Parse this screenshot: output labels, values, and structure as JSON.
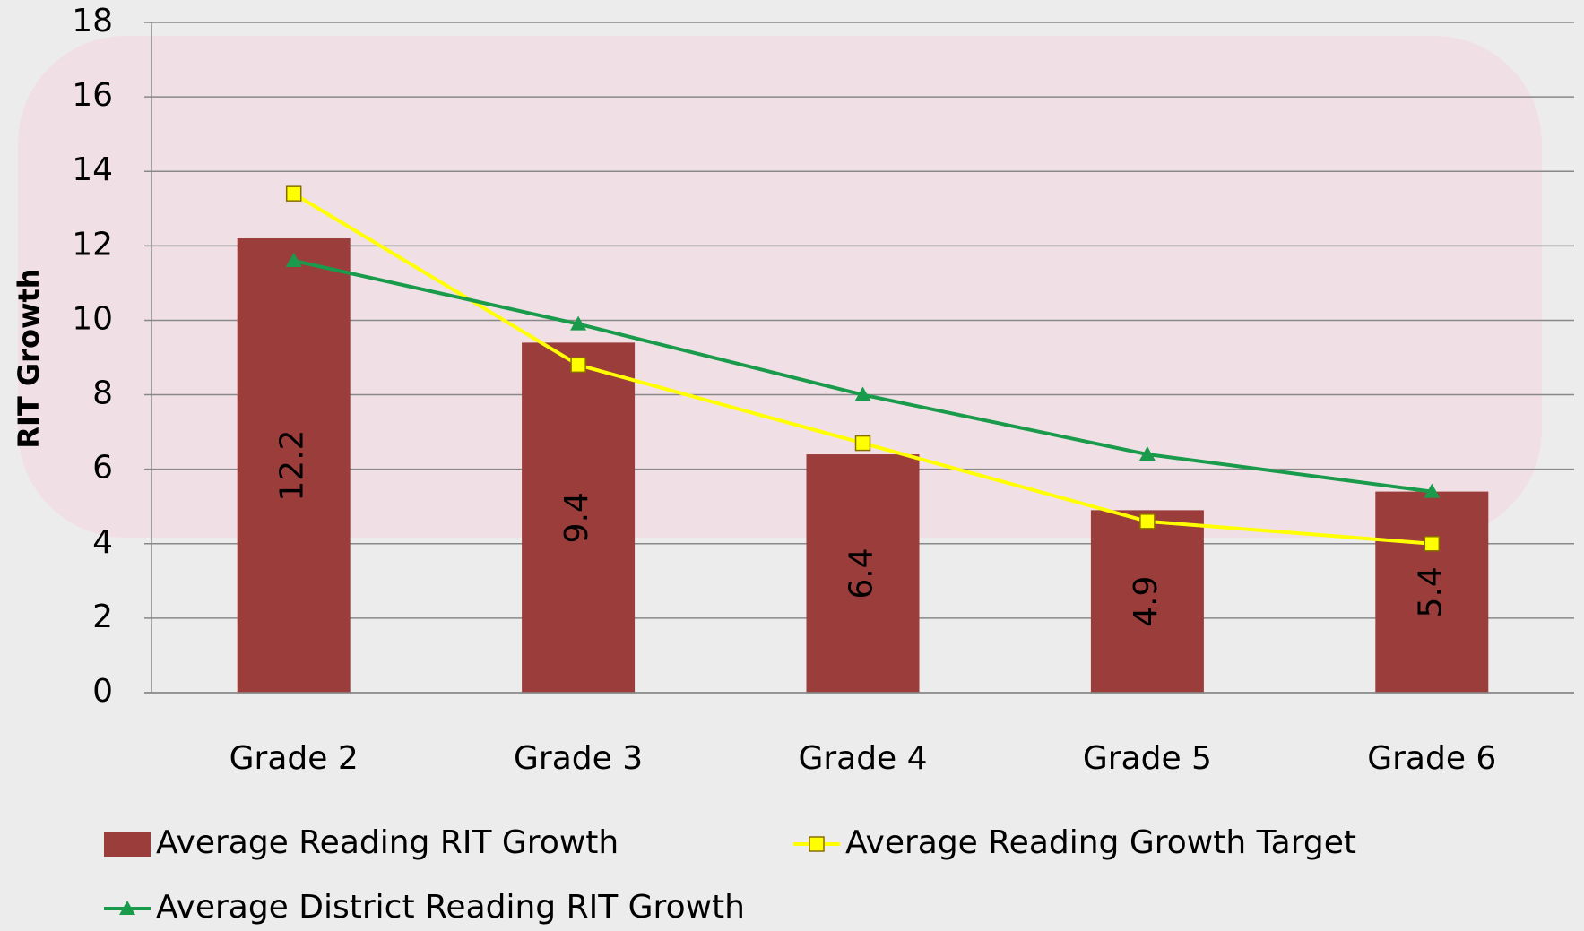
{
  "chart_data": {
    "type": "bar",
    "y_axis_label": "RIT Growth",
    "categories": [
      "Grade 2",
      "Grade 3",
      "Grade 4",
      "Grade 5",
      "Grade 6"
    ],
    "series": [
      {
        "name": "Average Reading RIT Growth",
        "type": "bar",
        "color": "#9b3d3a",
        "values": [
          12.2,
          9.4,
          6.4,
          4.9,
          5.4
        ]
      },
      {
        "name": "Average Reading Growth Target",
        "type": "line",
        "marker": "square",
        "color": "#ffff00",
        "values": [
          13.4,
          8.8,
          6.7,
          4.6,
          4.0
        ]
      },
      {
        "name": "Average District Reading RIT Growth",
        "type": "line",
        "marker": "triangle",
        "color": "#1a9b4b",
        "values": [
          11.6,
          9.9,
          8.0,
          6.4,
          5.4
        ]
      }
    ],
    "ylim": [
      0,
      18
    ],
    "yticks": [
      0,
      2,
      4,
      6,
      8,
      10,
      12,
      14,
      16,
      18
    ],
    "grid": true
  }
}
